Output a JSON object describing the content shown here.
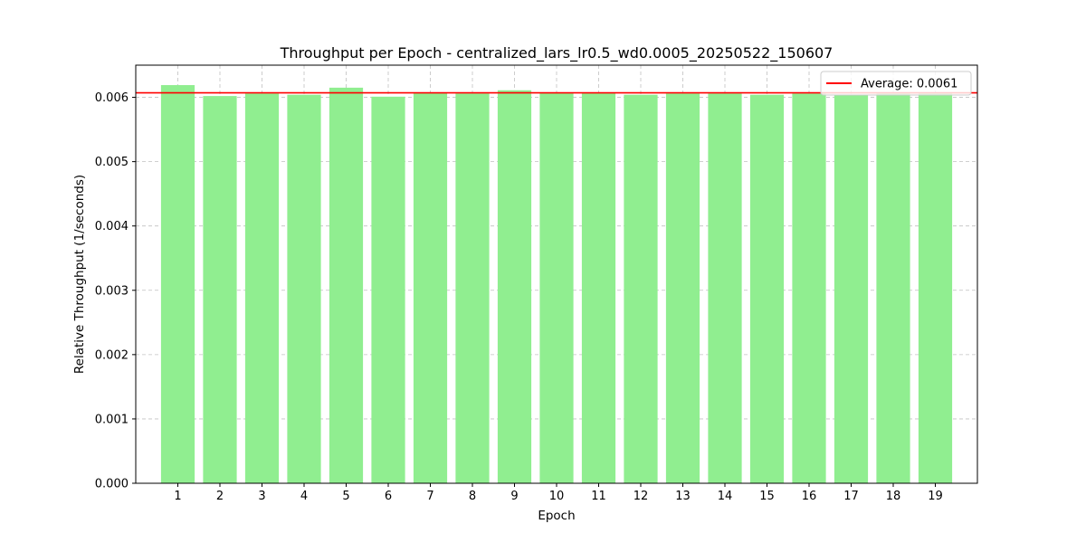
{
  "chart_data": {
    "type": "bar",
    "title": "Throughput per Epoch - centralized_lars_lr0.5_wd0.0005_20250522_150607",
    "xlabel": "Epoch",
    "ylabel": "Relative Throughput (1/seconds)",
    "categories": [
      "1",
      "2",
      "3",
      "4",
      "5",
      "6",
      "7",
      "8",
      "9",
      "10",
      "11",
      "12",
      "13",
      "14",
      "15",
      "16",
      "17",
      "18",
      "19"
    ],
    "values": [
      0.00619,
      0.00602,
      0.00606,
      0.00604,
      0.00615,
      0.00601,
      0.00607,
      0.00606,
      0.00611,
      0.00607,
      0.00607,
      0.00604,
      0.00606,
      0.00606,
      0.00604,
      0.00606,
      0.00603,
      0.00607,
      0.00607
    ],
    "ylim": [
      0,
      0.0065
    ],
    "yticks": [
      "0.000",
      "0.001",
      "0.002",
      "0.003",
      "0.004",
      "0.005",
      "0.006"
    ],
    "average": 0.00607,
    "legend": {
      "label": "Average: 0.0061",
      "placement": "upper-right"
    },
    "grid": true,
    "colors": {
      "bar": "#90ee90",
      "average_line": "#ff0000",
      "grid": "#b0b0b0"
    }
  }
}
